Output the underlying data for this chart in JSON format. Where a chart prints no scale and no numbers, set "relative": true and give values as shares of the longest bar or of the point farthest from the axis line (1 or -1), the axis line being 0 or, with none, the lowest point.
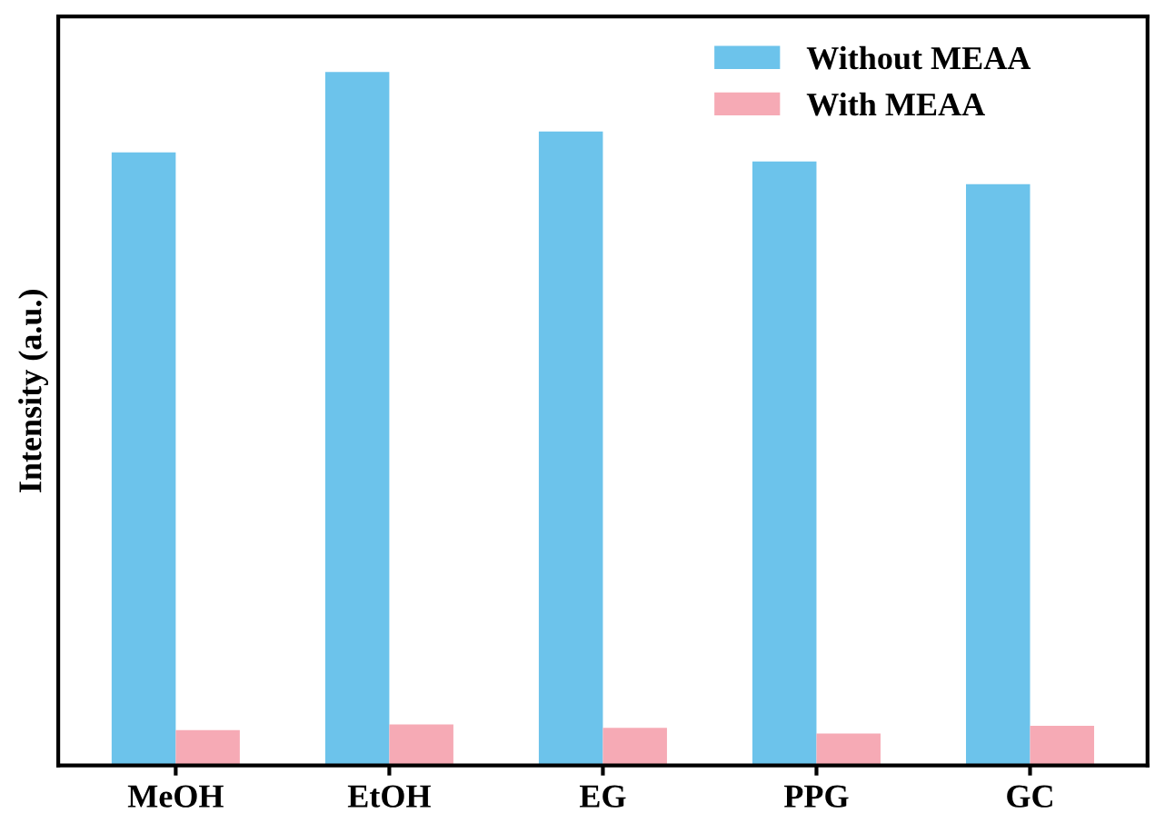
{
  "chart_data": {
    "type": "bar",
    "relative": true,
    "ylabel": "Intensity (a.u.)",
    "categories": [
      "MeOH",
      "EtOH",
      "EG",
      "PPG",
      "GC"
    ],
    "series": [
      {
        "name": "Without MEAA",
        "color": "#6cc3eb",
        "values": [
          0.884,
          1,
          0.914,
          0.871,
          0.838
        ]
      },
      {
        "name": "With MEAA",
        "color": "#f6aab5",
        "values": [
          0.051,
          0.059,
          0.054,
          0.046,
          0.057
        ]
      }
    ],
    "legend": "top right",
    "grid": false
  }
}
